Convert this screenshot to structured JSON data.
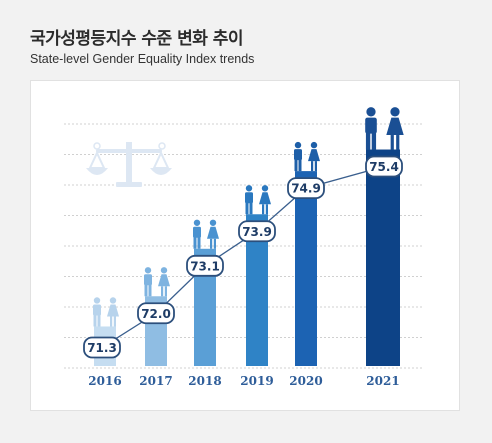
{
  "header": {
    "title": "국가성평등지수 수준 변화 추이",
    "subtitle": "State-level Gender Equality Index trends"
  },
  "chart_data": {
    "type": "bar",
    "title": "국가성평등지수 수준 변화 추이",
    "subtitle": "State-level Gender Equality Index trends",
    "categories": [
      "2016",
      "2017",
      "2018",
      "2019",
      "2020",
      "2021"
    ],
    "values": [
      71.3,
      72.0,
      73.1,
      73.9,
      74.9,
      75.4
    ],
    "value_labels": [
      "71.3",
      "72.0",
      "73.1",
      "73.9",
      "74.9",
      "75.4"
    ],
    "overlay": "line",
    "ylim": [
      70.5,
      76.2
    ],
    "grid": true,
    "legend": "none",
    "colors": {
      "bars": [
        "#c5ddf1",
        "#8fbde3",
        "#5a9fd6",
        "#2f83c6",
        "#1c63b3",
        "#0d4387"
      ],
      "figures": [
        "#b7d3ec",
        "#7eb3e0",
        "#4a92d0",
        "#2a78bf",
        "#1e5fa8",
        "#1a4f94"
      ],
      "line": "#3a5f8e",
      "label_border": "#2c4f7c",
      "label_text": "#1e3c66",
      "tick_text": "#2e5d99",
      "grid": "#d0d0d0",
      "icon_scale": "#dde7f3"
    },
    "icons": [
      "scale-icon",
      "person-pair-icon"
    ]
  }
}
